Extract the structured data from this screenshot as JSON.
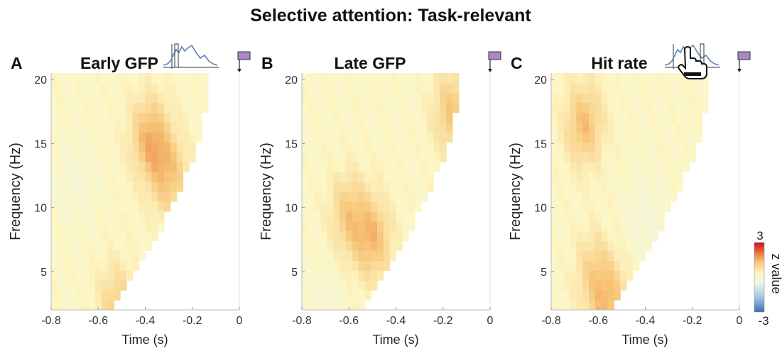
{
  "figure_title": "Selective attention: Task-relevant",
  "colorbar": {
    "label": "z value",
    "max_label": "3",
    "min_label": "-3",
    "range": [
      -3,
      3
    ],
    "colors": [
      "#3f6fb0",
      "#9ec3e0",
      "#f2f7e6",
      "#fdf6c4",
      "#f7c77a",
      "#e34a33",
      "#c8102e"
    ]
  },
  "panels": [
    {
      "letter": "A",
      "title": "Early GFP",
      "icon": "gfp-waveform-icon-early",
      "marker_color": "#a987c9"
    },
    {
      "letter": "B",
      "title": "Late GFP",
      "icon": "gfp-waveform-icon-late",
      "marker_color": "#a987c9"
    },
    {
      "letter": "C",
      "title": "Hit rate",
      "icon": "pointing-hand-icon",
      "marker_color": "#a987c9"
    }
  ],
  "chart_data": [
    {
      "type": "heatmap",
      "title": "Early GFP",
      "xlabel": "Time (s)",
      "ylabel": "Frequency (Hz)",
      "xlim": [
        -0.8,
        0
      ],
      "ylim": [
        2,
        20.5
      ],
      "xticks": [
        "-0.8",
        "-0.6",
        "-0.4",
        "-0.2",
        "0"
      ],
      "yticks": [
        "5",
        "10",
        "15",
        "20"
      ],
      "hotspots": [
        {
          "t": -0.38,
          "f": 15.5,
          "z": 1.2
        },
        {
          "t": -0.3,
          "f": 12.5,
          "z": 1.0
        },
        {
          "t": -0.52,
          "f": 2.5,
          "z": 0.8
        },
        {
          "t": -0.7,
          "f": 12,
          "z": -0.3
        }
      ]
    },
    {
      "type": "heatmap",
      "title": "Late GFP",
      "xlabel": "Time (s)",
      "ylabel": "Frequency (Hz)",
      "xlim": [
        -0.8,
        0
      ],
      "ylim": [
        2,
        20.5
      ],
      "xticks": [
        "-0.8",
        "-0.6",
        "-0.4",
        "-0.2",
        "0"
      ],
      "yticks": [
        "5",
        "10",
        "15",
        "20"
      ],
      "hotspots": [
        {
          "t": -0.5,
          "f": 7.5,
          "z": 1.1
        },
        {
          "t": -0.6,
          "f": 9.5,
          "z": 0.9
        },
        {
          "t": -0.16,
          "f": 17.5,
          "z": 1.0
        },
        {
          "t": -0.7,
          "f": 2.5,
          "z": -0.3
        }
      ]
    },
    {
      "type": "heatmap",
      "title": "Hit rate",
      "xlabel": "Time (s)",
      "ylabel": "Frequency (Hz)",
      "xlim": [
        -0.8,
        0
      ],
      "ylim": [
        2,
        20.5
      ],
      "xticks": [
        "-0.8",
        "-0.6",
        "-0.4",
        "-0.2",
        "0"
      ],
      "yticks": [
        "5",
        "10",
        "15",
        "20"
      ],
      "hotspots": [
        {
          "t": -0.66,
          "f": 16.5,
          "z": 1.1
        },
        {
          "t": -0.55,
          "f": 2.5,
          "z": 1.0
        },
        {
          "t": -0.62,
          "f": 5,
          "z": 0.7
        },
        {
          "t": -0.4,
          "f": 9,
          "z": -0.35
        }
      ]
    }
  ]
}
